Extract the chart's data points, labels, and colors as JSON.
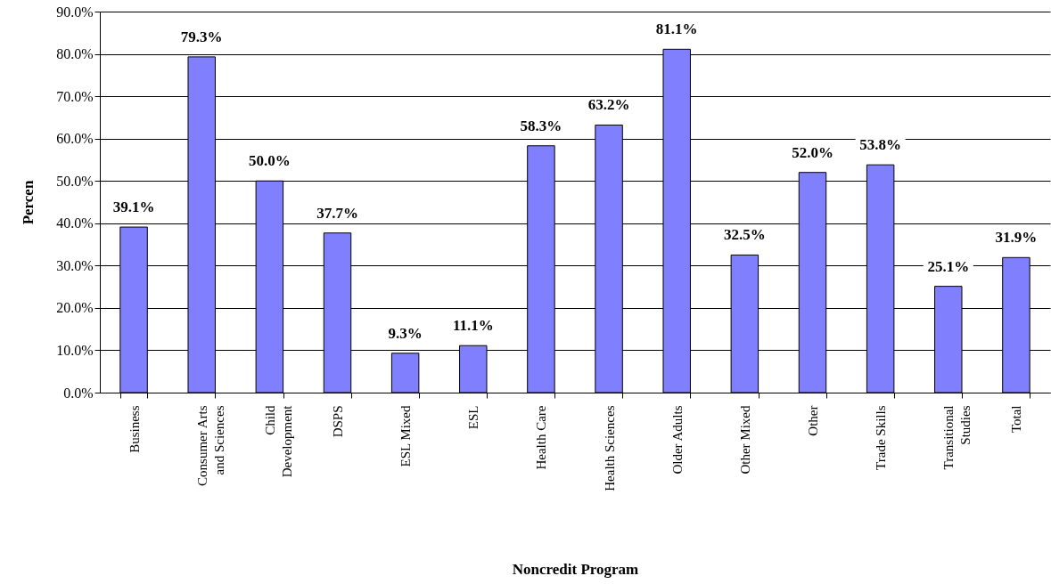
{
  "chart_data": {
    "type": "bar",
    "xlabel": "Noncredit Program",
    "ylabel": "Percen",
    "categories": [
      "Business",
      "Consumer Arts\nand Sciences",
      "Child\nDevelopment",
      "DSPS",
      "ESL  Mixed",
      "ESL",
      "Health Care",
      "Health Sciences",
      "Older Adults",
      "Other Mixed",
      "Other",
      "Trade Skills",
      "Transitional\nStudies",
      "Total"
    ],
    "values": [
      39.1,
      79.3,
      50.0,
      37.7,
      9.3,
      11.1,
      58.3,
      63.2,
      81.1,
      32.5,
      52.0,
      53.8,
      25.1,
      31.9
    ],
    "value_labels": [
      "39.1%",
      "79.3%",
      "50.0%",
      "37.7%",
      "9.3%",
      "11.1%",
      "58.3%",
      "63.2%",
      "81.1%",
      "32.5%",
      "52.0%",
      "53.8%",
      "25.1%",
      "31.9%"
    ],
    "color": "#8080ff",
    "ylim": [
      0,
      90
    ],
    "yticks": [
      {
        "value": 0,
        "label": "0.0%"
      },
      {
        "value": 10,
        "label": "10.0%"
      },
      {
        "value": 20,
        "label": "20.0%"
      },
      {
        "value": 30,
        "label": "30.0%"
      },
      {
        "value": 40,
        "label": "40.0%"
      },
      {
        "value": 50,
        "label": "50.0%"
      },
      {
        "value": 60,
        "label": "60.0%"
      },
      {
        "value": 70,
        "label": "70.0%"
      },
      {
        "value": 80,
        "label": "80.0%"
      },
      {
        "value": 90,
        "label": "90.0%"
      }
    ],
    "grid": "y",
    "legend": false
  }
}
